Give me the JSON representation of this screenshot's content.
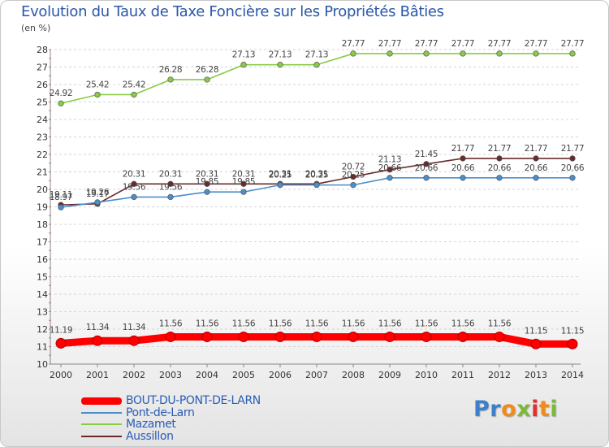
{
  "title": "Evolution du Taux de Taxe Foncière sur les Propriétés Bâties",
  "unit_label": "(en %)",
  "chart_data": {
    "type": "line",
    "title": "Evolution du Taux de Taxe Foncière sur les Propriétés Bâties",
    "ylabel": "(en %)",
    "xlabel": "",
    "x": [
      "2000",
      "2001",
      "2002",
      "2003",
      "2004",
      "2005",
      "2006",
      "2007",
      "2008",
      "2009",
      "2010",
      "2011",
      "2012",
      "2013",
      "2014"
    ],
    "ylim": [
      10,
      28
    ],
    "yticks": [
      10,
      11,
      12,
      13,
      14,
      15,
      16,
      17,
      18,
      19,
      20,
      21,
      22,
      23,
      24,
      25,
      26,
      27,
      28
    ],
    "grid": "horizontal dashed",
    "legend_position": "bottom-left",
    "series": [
      {
        "name": "BOUT-DU-PONT-DE-LARN",
        "color": "#ff0000",
        "values": [
          11.19,
          11.34,
          11.34,
          11.56,
          11.56,
          11.56,
          11.56,
          11.56,
          11.56,
          11.56,
          11.56,
          11.56,
          11.56,
          11.15,
          11.15
        ],
        "labels": [
          "11.19",
          "11.34",
          "11.34",
          "11.56",
          "11.56",
          "11.56",
          "11.56",
          "11.56",
          "11.56",
          "11.56",
          "11.56",
          "11.56",
          "11.56",
          "11.15",
          "11.15"
        ]
      },
      {
        "name": "Pont-de-Larn",
        "color": "#4a8ecb",
        "values": [
          18.97,
          19.26,
          19.56,
          19.56,
          19.85,
          19.85,
          20.25,
          20.25,
          20.25,
          20.66,
          20.66,
          20.66,
          20.66,
          20.66,
          20.66
        ],
        "labels": [
          "18.97",
          "19.26",
          "19.56",
          "19.56",
          "19.85",
          "19.85",
          "20.25",
          "20.25",
          "20.25",
          "20.66",
          "20.66",
          "20.66",
          "20.66",
          "20.66",
          "20.66"
        ]
      },
      {
        "name": "Mazamet",
        "color": "#88cc44",
        "values": [
          24.92,
          25.42,
          25.42,
          26.28,
          26.28,
          27.13,
          27.13,
          27.13,
          27.77,
          27.77,
          27.77,
          27.77,
          27.77,
          27.77,
          27.77
        ],
        "labels": [
          "24.92",
          "25.42",
          "25.42",
          "26.28",
          "26.28",
          "27.13",
          "27.13",
          "27.13",
          "27.77",
          "27.77",
          "27.77",
          "27.77",
          "27.77",
          "27.77",
          "27.77"
        ]
      },
      {
        "name": "Aussillon",
        "color": "#6b2a2a",
        "values": [
          19.11,
          19.17,
          20.31,
          20.31,
          20.31,
          20.31,
          20.31,
          20.31,
          20.72,
          21.13,
          21.45,
          21.77,
          21.77,
          21.77,
          21.77
        ],
        "labels": [
          "19.11",
          "19.17",
          "20.31",
          "20.31",
          "20.31",
          "20.31",
          "20.31",
          "20.31",
          "20.72",
          "21.13",
          "21.45",
          "21.77",
          "21.77",
          "21.77",
          "21.77"
        ]
      }
    ]
  },
  "logo": {
    "letters": [
      {
        "ch": "P",
        "color": "#3d7fc9"
      },
      {
        "ch": "r",
        "color": "#3d7fc9"
      },
      {
        "ch": "o",
        "color": "#f08a1c"
      },
      {
        "ch": "x",
        "color": "#7ab93a"
      },
      {
        "ch": "i",
        "color": "#e0312b"
      },
      {
        "ch": "t",
        "color": "#f08a1c"
      },
      {
        "ch": "i",
        "color": "#7ab93a"
      }
    ]
  }
}
